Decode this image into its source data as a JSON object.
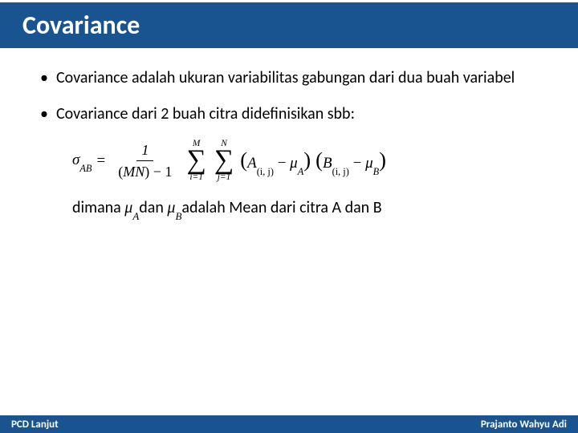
{
  "colors": {
    "header_bg": "#1a5490",
    "header_text": "#ffffff",
    "body_text": "#000000",
    "background": "#ffffff"
  },
  "typography": {
    "title_fontsize": 32,
    "body_fontsize": 20,
    "formula_fontsize": 19,
    "footer_fontsize": 13
  },
  "title": "Covariance",
  "bullets": [
    "Covariance adalah ukuran variabilitas gabungan dari dua buah variabel",
    "Covariance dari 2 buah citra didefinisikan sbb:"
  ],
  "formula": {
    "lhs_sigma": "σ",
    "lhs_sub": "AB",
    "eq": "=",
    "frac_num": "1",
    "frac_den_left": "(",
    "frac_den_mn": "MN",
    "frac_den_right": ")",
    "minus": " − 1",
    "sum1_top": "M",
    "sum1_bot": "i=1",
    "sum2_top": "N",
    "sum2_bot": "j=1",
    "lpar": "(",
    "A": "A",
    "Aidx": "(i, j)",
    "minus2": " − ",
    "muA": "μ",
    "muA_sub": "A",
    "rpar": ")",
    "lpar2": "(",
    "B": "B",
    "Bidx": "(i, j)",
    "minus3": " − ",
    "muB": "μ",
    "muB_sub": "B",
    "rpar2": ")"
  },
  "dimana": {
    "pre": "dimana ",
    "muA": "μ",
    "muA_sub": "A",
    "mid": "dan ",
    "muB": "μ",
    "muB_sub": "B",
    "post": "adalah Mean dari citra A dan B"
  },
  "footer": {
    "left": "PCD Lanjut",
    "right": "Prajanto Wahyu Adi"
  }
}
